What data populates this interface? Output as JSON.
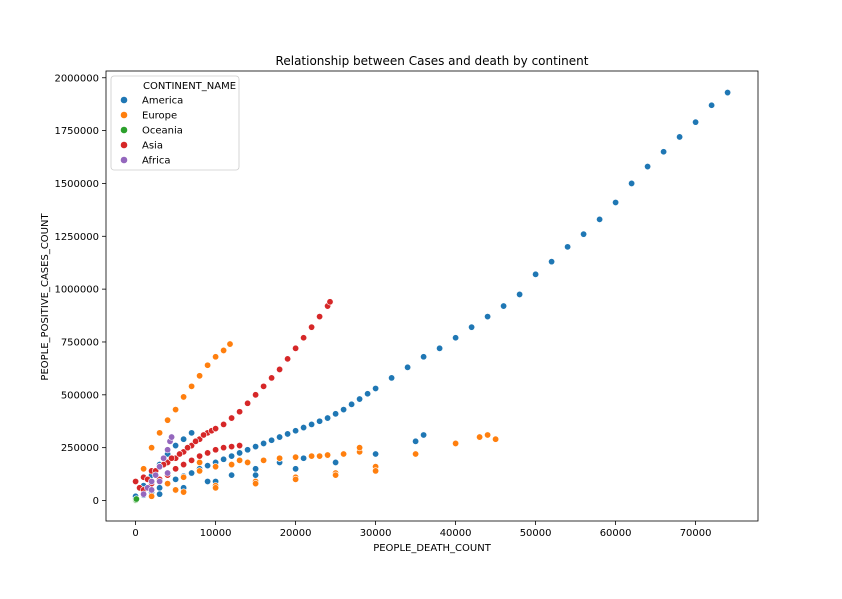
{
  "chart_data": {
    "type": "scatter",
    "title": "Relationship between Cases and death by continent",
    "xlabel": "PEOPLE_DEATH_COUNT",
    "ylabel": "PEOPLE_POSITIVE_CASES_COUNT",
    "xlim": [
      -3700,
      77800
    ],
    "ylim": [
      -97000,
      2032000
    ],
    "xticks": [
      0,
      10000,
      20000,
      30000,
      40000,
      50000,
      60000,
      70000
    ],
    "yticks": [
      0,
      250000,
      500000,
      750000,
      1000000,
      1250000,
      1500000,
      1750000,
      2000000
    ],
    "grid": false,
    "legend": {
      "title": "CONTINENT_NAME",
      "placement": "top-left",
      "entries": [
        "America",
        "Europe",
        "Oceania",
        "Asia",
        "Africa"
      ]
    },
    "colors": {
      "America": "#1f77b4",
      "Europe": "#ff7f0e",
      "Oceania": "#2ca02c",
      "Asia": "#d62728",
      "Africa": "#9467bd"
    },
    "series": [
      {
        "name": "America",
        "x": [
          0,
          1000,
          2000,
          3000,
          4000,
          5000,
          6000,
          7000,
          8000,
          9000,
          10000,
          11000,
          12000,
          13000,
          14000,
          15000,
          16000,
          17000,
          18000,
          19000,
          20000,
          21000,
          22000,
          23000,
          24000,
          25000,
          26000,
          27000,
          28000,
          29000,
          30000,
          32000,
          34000,
          36000,
          38000,
          40000,
          42000,
          44000,
          46000,
          48000,
          50000,
          52000,
          54000,
          56000,
          58000,
          60000,
          62000,
          64000,
          66000,
          68000,
          70000,
          72000,
          74000,
          1000,
          2000,
          3000,
          4000,
          5000,
          6000,
          7000,
          0,
          5000,
          10000,
          15000,
          20000,
          25000,
          30000,
          35000,
          36000,
          3000,
          6000,
          9000,
          12000,
          15000,
          18000,
          21000,
          24000
        ],
        "y": [
          10000,
          25000,
          40000,
          60000,
          80000,
          100000,
          115000,
          130000,
          150000,
          165000,
          180000,
          195000,
          210000,
          225000,
          240000,
          255000,
          270000,
          285000,
          300000,
          315000,
          330000,
          345000,
          360000,
          375000,
          390000,
          410000,
          430000,
          455000,
          480000,
          505000,
          530000,
          580000,
          630000,
          680000,
          720000,
          770000,
          820000,
          870000,
          920000,
          975000,
          1070000,
          1130000,
          1200000,
          1260000,
          1330000,
          1410000,
          1500000,
          1580000,
          1650000,
          1720000,
          1790000,
          1870000,
          1930000,
          70000,
          120000,
          170000,
          220000,
          260000,
          290000,
          320000,
          20000,
          50000,
          90000,
          120000,
          150000,
          180000,
          220000,
          280000,
          310000,
          30000,
          60000,
          90000,
          120000,
          150000,
          180000,
          200000,
          215000
        ]
      },
      {
        "name": "Europe",
        "x": [
          1000,
          2000,
          3000,
          4000,
          5000,
          6000,
          7000,
          8000,
          9000,
          10000,
          11000,
          11800,
          2000,
          4000,
          6000,
          8000,
          10000,
          12000,
          14000,
          16000,
          18000,
          20000,
          22000,
          24000,
          26000,
          28000,
          1000,
          5000,
          10000,
          15000,
          20000,
          25000,
          30000,
          35000,
          40000,
          43000,
          44000,
          45000,
          2000,
          6000,
          10000,
          15000,
          20000,
          25000,
          30000,
          3000,
          8000,
          13000,
          18000,
          23000,
          28000
        ],
        "y": [
          150000,
          250000,
          320000,
          380000,
          430000,
          490000,
          540000,
          590000,
          640000,
          680000,
          710000,
          740000,
          50000,
          80000,
          110000,
          140000,
          160000,
          170000,
          180000,
          190000,
          200000,
          205000,
          210000,
          215000,
          220000,
          230000,
          30000,
          50000,
          70000,
          90000,
          110000,
          130000,
          160000,
          220000,
          270000,
          300000,
          310000,
          290000,
          20000,
          40000,
          60000,
          80000,
          100000,
          120000,
          140000,
          160000,
          180000,
          190000,
          200000,
          210000,
          250000
        ]
      },
      {
        "name": "Oceania",
        "x": [
          0,
          50,
          100
        ],
        "y": [
          500,
          2500,
          7000
        ]
      },
      {
        "name": "Asia",
        "x": [
          0,
          1000,
          2000,
          3000,
          4000,
          5000,
          6000,
          7000,
          8000,
          9000,
          10000,
          11000,
          12000,
          13000,
          14000,
          15000,
          16000,
          17000,
          18000,
          19000,
          20000,
          21000,
          22000,
          23000,
          24000,
          24300,
          500,
          1500,
          2500,
          3500,
          4500,
          5500,
          6500,
          7500,
          8500,
          9500,
          10000,
          1000,
          2000,
          3000,
          4000,
          5000,
          6000,
          7000,
          8000,
          9000,
          10000,
          11000,
          12000,
          13000
        ],
        "y": [
          90000,
          110000,
          140000,
          160000,
          180000,
          200000,
          230000,
          260000,
          290000,
          320000,
          340000,
          360000,
          390000,
          420000,
          460000,
          500000,
          540000,
          580000,
          620000,
          670000,
          720000,
          770000,
          820000,
          870000,
          920000,
          940000,
          60000,
          100000,
          140000,
          170000,
          200000,
          220000,
          250000,
          280000,
          310000,
          330000,
          340000,
          50000,
          80000,
          100000,
          120000,
          150000,
          170000,
          190000,
          210000,
          225000,
          240000,
          250000,
          255000,
          260000
        ]
      },
      {
        "name": "Africa",
        "x": [
          1000,
          1500,
          2000,
          2500,
          3000,
          3500,
          4000,
          4300,
          4500,
          2000,
          3000,
          4000
        ],
        "y": [
          30000,
          60000,
          90000,
          120000,
          160000,
          200000,
          240000,
          280000,
          300000,
          50000,
          90000,
          130000
        ]
      }
    ]
  }
}
